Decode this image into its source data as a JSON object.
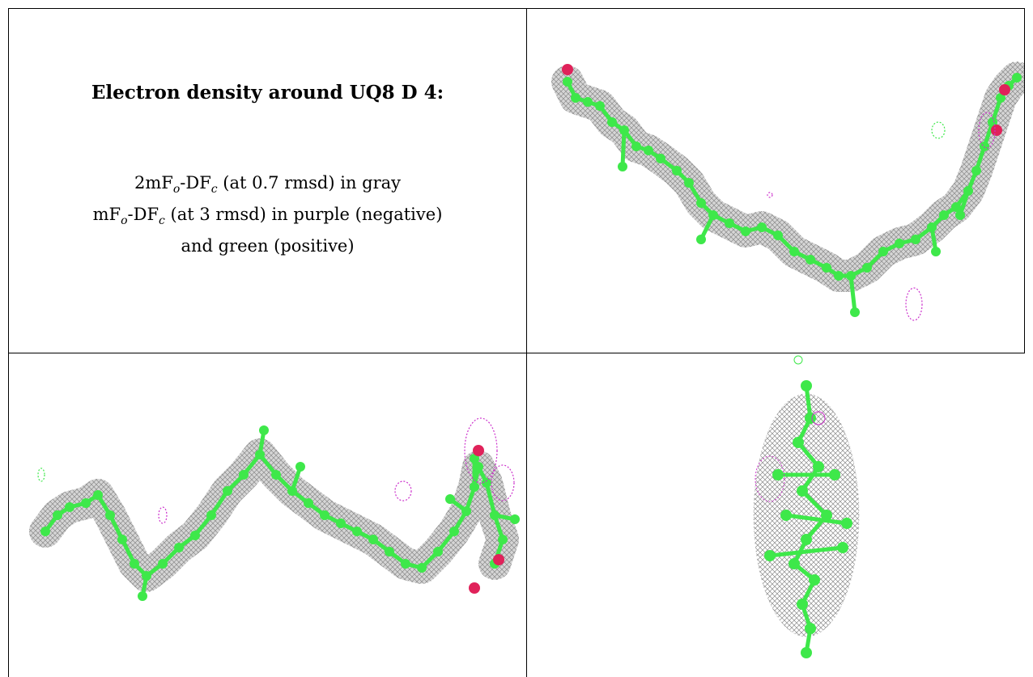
{
  "heading": "Electron density around UQ8 D 4:",
  "legend": {
    "line1_a": "2mF",
    "line1_sub1": "o",
    "line1_b": "-DF",
    "line1_sub2": "c",
    "line1_c": " (at 0.7 rmsd) in gray",
    "line2_a": "mF",
    "line2_sub1": "o",
    "line2_b": "-DF",
    "line2_sub2": "c",
    "line2_c": " (at 3 rmsd) in purple (negative)",
    "line3": "and green (positive)"
  },
  "colors": {
    "mesh_gray": "#8a8a8a",
    "atom_green": "#3ee84a",
    "oxygen_red": "#e0225a",
    "neg_purple": "#cc33cc",
    "border": "#000000"
  }
}
